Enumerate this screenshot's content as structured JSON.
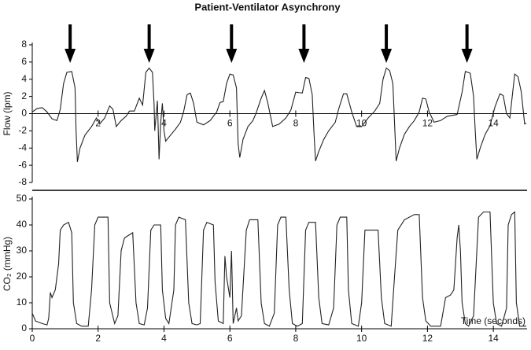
{
  "chart_data": [
    {
      "type": "line",
      "title": "Patient-Ventilator Asynchrony",
      "ylabel": "Flow (lpm)",
      "xlim": [
        0,
        15
      ],
      "ylim": [
        -8,
        8
      ],
      "yticks": [
        -8,
        -6,
        -4,
        -2,
        0,
        2,
        4,
        6,
        8
      ],
      "xticks": [
        2,
        4,
        6,
        8,
        10,
        12,
        14
      ],
      "arrows_x": [
        1.15,
        3.55,
        6.05,
        8.25,
        10.75,
        13.2
      ],
      "x": [
        0.0,
        0.15,
        0.3,
        0.45,
        0.6,
        0.75,
        0.85,
        0.95,
        1.05,
        1.2,
        1.3,
        1.33,
        1.37,
        1.45,
        1.6,
        1.8,
        1.95,
        2.05,
        2.2,
        2.35,
        2.45,
        2.55,
        2.7,
        2.85,
        2.95,
        3.1,
        3.25,
        3.35,
        3.45,
        3.55,
        3.65,
        3.7,
        3.72,
        3.8,
        3.85,
        3.9,
        3.95,
        4.0,
        4.05,
        4.2,
        4.35,
        4.5,
        4.6,
        4.7,
        4.8,
        4.9,
        5.0,
        5.2,
        5.4,
        5.5,
        5.6,
        5.7,
        5.8,
        5.9,
        6.0,
        6.1,
        6.2,
        6.25,
        6.3,
        6.4,
        6.55,
        6.7,
        6.8,
        6.95,
        7.05,
        7.15,
        7.3,
        7.5,
        7.7,
        7.85,
        8.0,
        8.2,
        8.3,
        8.4,
        8.5,
        8.55,
        8.6,
        8.7,
        8.85,
        9.0,
        9.2,
        9.3,
        9.45,
        9.55,
        9.7,
        9.85,
        10.0,
        10.2,
        10.4,
        10.55,
        10.65,
        10.75,
        10.85,
        10.95,
        11.0,
        11.05,
        11.15,
        11.3,
        11.45,
        11.6,
        11.75,
        11.85,
        11.95,
        12.05,
        12.2,
        12.4,
        12.6,
        12.75,
        12.9,
        13.05,
        13.15,
        13.3,
        13.4,
        13.45,
        13.5,
        13.6,
        13.75,
        13.9,
        14.05,
        14.2,
        14.3,
        14.4,
        14.5,
        14.65,
        14.75,
        14.85,
        14.95,
        15.0
      ],
      "series": [
        {
          "color": "#222222",
          "values": [
            0.2,
            0.6,
            0.7,
            0.2,
            -0.6,
            -0.8,
            0.5,
            3.5,
            4.8,
            4.9,
            3,
            -2,
            -5.6,
            -4,
            -2.5,
            -1.5,
            -0.5,
            -1.2,
            -0.5,
            0.9,
            0.5,
            -1.5,
            -0.8,
            -0.3,
            0.3,
            0.3,
            1.8,
            1,
            4.8,
            5.3,
            4.8,
            1,
            -2,
            1.5,
            -5.3,
            -1,
            1.2,
            -2,
            -3.2,
            -2.5,
            -1.8,
            -1.0,
            0.3,
            2.2,
            2.4,
            1.2,
            -1,
            -1.3,
            -0.8,
            -0.3,
            0.2,
            1.3,
            1.4,
            3.5,
            4.6,
            4.5,
            3,
            -3.5,
            -5.1,
            -3,
            -1.5,
            -0.8,
            0.1,
            1.8,
            2.7,
            1.3,
            -1.5,
            -1.2,
            -0.5,
            0.4,
            2.5,
            2.4,
            4.2,
            4.1,
            2.2,
            -2,
            -5.5,
            -4.4,
            -3,
            -2,
            -1,
            0.5,
            2.3,
            2.3,
            0.2,
            -1.5,
            -1.5,
            -0.5,
            0.3,
            1.2,
            4,
            5.3,
            5,
            3.5,
            -1,
            -5.5,
            -4,
            -2.4,
            -1.5,
            -0.8,
            0.2,
            1.8,
            1.7,
            0.2,
            -1,
            -0.8,
            -0.3,
            -0.2,
            -0.1,
            2.5,
            4.9,
            4.7,
            2,
            -2,
            -5.3,
            -4,
            -2.4,
            -1.4,
            0.8,
            2.3,
            2.1,
            0,
            -0.5,
            4.6,
            4.3,
            2.5,
            -1.2,
            -1.1
          ]
        }
      ]
    },
    {
      "type": "line",
      "ylabel": "CO₂ (mmHg)",
      "xlabel": "Time (seconds)",
      "xlim": [
        0,
        15
      ],
      "ylim": [
        0,
        50
      ],
      "yticks": [
        0,
        10,
        20,
        30,
        40,
        50
      ],
      "xticks": [
        0,
        2,
        4,
        6,
        8,
        10,
        12,
        14
      ],
      "x": [
        0,
        0.1,
        0.3,
        0.45,
        0.5,
        0.55,
        0.6,
        0.7,
        0.8,
        0.85,
        0.95,
        1.1,
        1.2,
        1.25,
        1.35,
        1.5,
        1.7,
        1.8,
        1.9,
        2.0,
        2.3,
        2.35,
        2.5,
        2.6,
        2.7,
        2.8,
        3.05,
        3.15,
        3.25,
        3.4,
        3.5,
        3.6,
        3.7,
        3.9,
        3.95,
        4.05,
        4.15,
        4.3,
        4.35,
        4.45,
        4.65,
        4.75,
        4.85,
        5.0,
        5.1,
        5.2,
        5.3,
        5.5,
        5.55,
        5.65,
        5.8,
        5.85,
        5.9,
        6.0,
        6.05,
        6.1,
        6.2,
        6.25,
        6.35,
        6.5,
        6.6,
        6.85,
        6.95,
        7.05,
        7.2,
        7.35,
        7.45,
        7.55,
        7.7,
        7.8,
        7.9,
        8.05,
        8.2,
        8.3,
        8.4,
        8.6,
        8.7,
        8.8,
        9.0,
        9.15,
        9.25,
        9.35,
        9.55,
        9.6,
        9.7,
        9.9,
        10.0,
        10.1,
        10.5,
        10.6,
        10.7,
        10.9,
        11.0,
        11.1,
        11.3,
        11.6,
        11.75,
        11.85,
        11.95,
        12.1,
        12.2,
        12.4,
        12.55,
        12.7,
        12.8,
        12.9,
        12.95,
        13.0,
        13.05,
        13.15,
        13.25,
        13.4,
        13.55,
        13.7,
        13.9,
        14.0,
        14.1,
        14.25,
        14.4,
        14.45,
        14.55,
        14.65,
        14.7,
        14.8,
        15.0
      ],
      "series": [
        {
          "color": "#222222",
          "values": [
            6,
            3,
            2,
            1.5,
            4,
            14,
            12,
            15,
            25,
            38,
            40,
            41,
            37,
            10,
            2,
            1,
            1,
            15,
            40,
            43,
            43,
            10,
            2,
            5,
            30,
            35,
            37,
            10,
            2,
            1.5,
            8,
            38,
            40,
            40,
            15,
            4,
            2,
            15,
            40,
            43,
            42,
            10,
            2,
            1.5,
            2,
            38,
            41,
            40,
            18,
            3,
            2,
            28,
            20,
            12,
            30,
            2,
            8,
            3,
            5,
            38,
            42,
            42,
            10,
            2,
            1,
            6,
            40,
            43,
            43,
            15,
            2,
            1,
            2,
            38,
            41,
            41,
            12,
            2,
            1.5,
            8,
            40,
            43,
            43,
            15,
            2,
            1,
            10,
            38,
            38,
            12,
            2,
            1,
            20,
            38,
            42,
            44,
            44,
            12,
            3,
            1,
            1,
            1,
            12,
            13,
            15,
            35,
            40,
            30,
            10,
            2,
            1,
            5,
            43,
            45,
            45,
            10,
            2,
            1,
            8,
            40,
            44,
            45,
            10,
            1,
            1
          ]
        }
      ]
    }
  ]
}
